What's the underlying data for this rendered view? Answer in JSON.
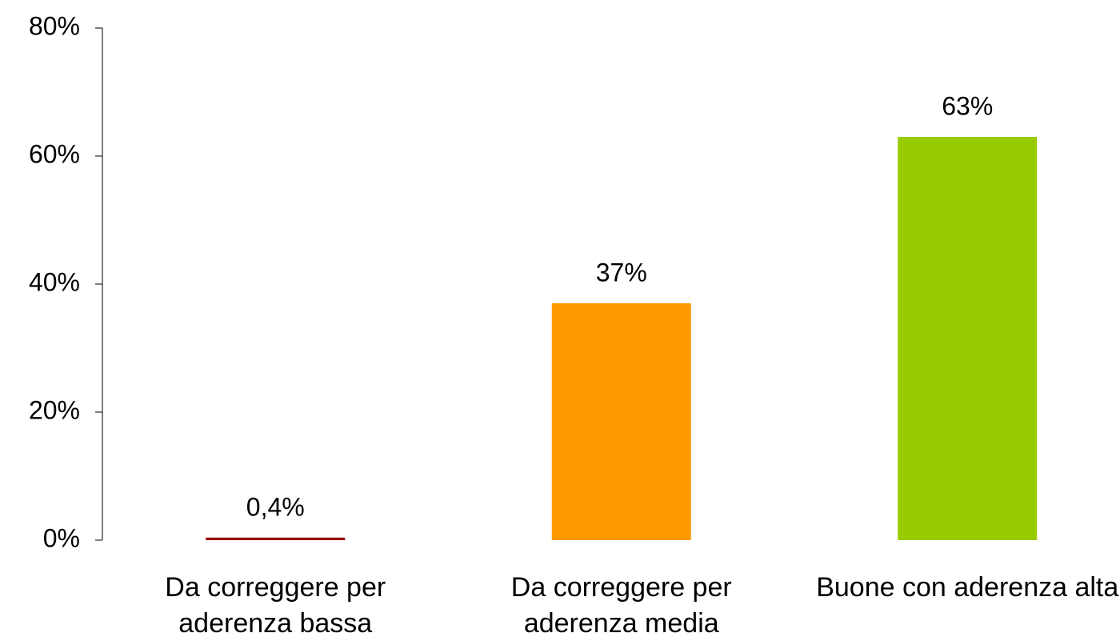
{
  "chart_data": {
    "type": "bar",
    "categories": [
      "Da correggere per aderenza bassa",
      "Da correggere per aderenza media",
      "Buone con aderenza alta"
    ],
    "values": [
      0.4,
      37,
      63
    ],
    "value_labels": [
      "0,4%",
      "37%",
      "63%"
    ],
    "colors": [
      "#990000",
      "#ff9900",
      "#99cc00"
    ],
    "ylim": [
      0,
      80
    ],
    "yticks": [
      {
        "value": 0,
        "label": "0%"
      },
      {
        "value": 20,
        "label": "20%"
      },
      {
        "value": 40,
        "label": "40%"
      },
      {
        "value": 60,
        "label": "60%"
      },
      {
        "value": 80,
        "label": "80%"
      }
    ],
    "grid": false
  }
}
